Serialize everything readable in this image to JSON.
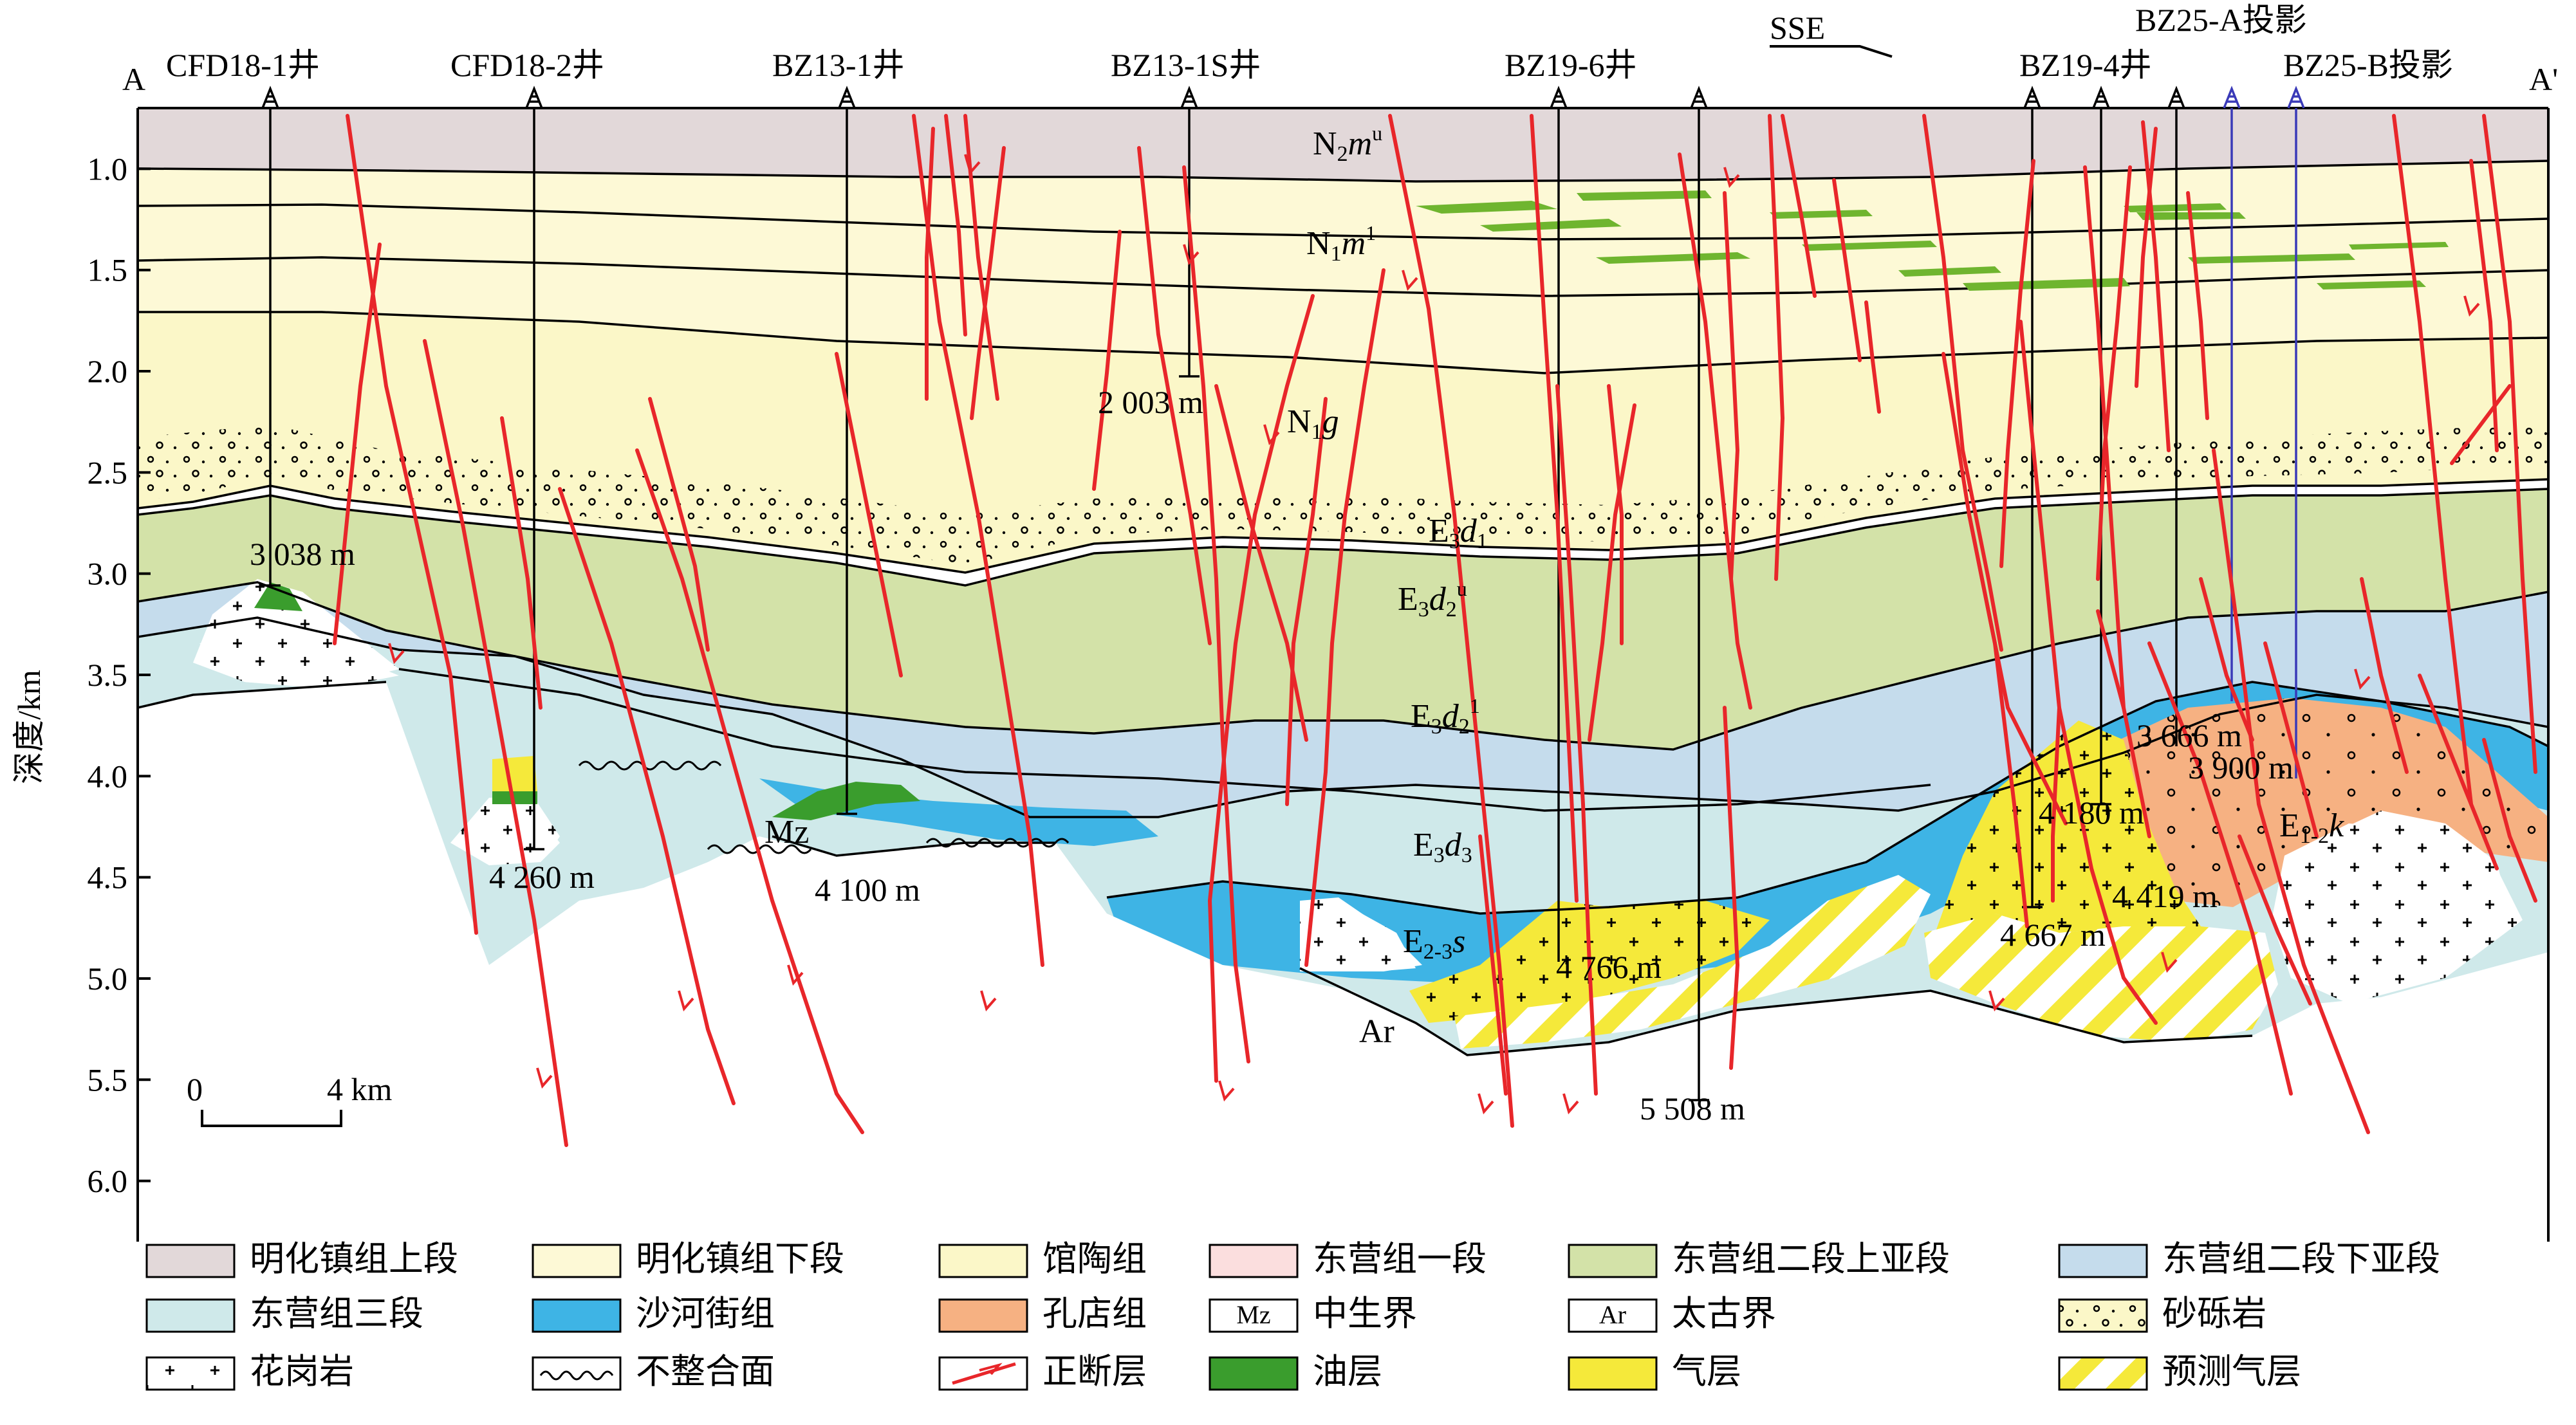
{
  "section": {
    "left_end": "A",
    "right_end": "A'",
    "direction": "SSE"
  },
  "wells": [
    {
      "name": "CFD18-1井"
    },
    {
      "name": "CFD18-2井"
    },
    {
      "name": "BZ13-1井"
    },
    {
      "name": "BZ13-1S井"
    },
    {
      "name": "BZ19-6井"
    },
    {
      "name": "BZ19-4井"
    },
    {
      "name": "BZ25-A投影"
    },
    {
      "name": "BZ25-B投影"
    }
  ],
  "depths": [
    "3 038 m",
    "4 260 m",
    "4 100 m",
    "2 003 m",
    "4 766 m",
    "5 508 m",
    "4 180 m",
    "4 667 m",
    "3 666 m",
    "4 419 m",
    "3 900 m"
  ],
  "units": {
    "mesozoic": "Mz",
    "archean": "Ar"
  },
  "axis": {
    "ylabel": "深度/km",
    "yticks": [
      "1.0",
      "1.5",
      "2.0",
      "2.5",
      "3.0",
      "3.5",
      "4.0",
      "4.5",
      "5.0",
      "5.5",
      "6.0"
    ],
    "ylim": [
      0.7,
      6.3
    ]
  },
  "scale": {
    "start": "0",
    "end": "4 km"
  },
  "legend": [
    {
      "label": "明化镇组上段",
      "swatch": "#e2d8d9"
    },
    {
      "label": "明化镇组下段",
      "swatch": "#fdf9d6"
    },
    {
      "label": "馆陶组",
      "swatch": "#fbf7c8"
    },
    {
      "label": "东营组一段",
      "swatch": "#fbdede"
    },
    {
      "label": "东营组二段上亚段",
      "swatch": "#d3e2a8"
    },
    {
      "label": "东营组二段下亚段",
      "swatch": "#c5dcec"
    },
    {
      "label": "东营组三段",
      "swatch": "#cfe9ea"
    },
    {
      "label": "沙河街组",
      "swatch": "#3eb4e5"
    },
    {
      "label": "孔店组",
      "swatch": "#f6b182"
    },
    {
      "label": "中生界",
      "swatch": "mz",
      "swatch_text": "Mz"
    },
    {
      "label": "太古界",
      "swatch": "ar",
      "swatch_text": "Ar"
    },
    {
      "label": "砂砾岩",
      "swatch": "gravel"
    },
    {
      "label": "花岗岩",
      "swatch": "granite"
    },
    {
      "label": "不整合面",
      "swatch": "unconformity"
    },
    {
      "label": "正断层",
      "swatch": "fault"
    },
    {
      "label": "油层",
      "swatch": "#3a9d2d"
    },
    {
      "label": "气层",
      "swatch": "#f5e93a"
    },
    {
      "label": "预测气层",
      "swatch": "predicted"
    }
  ]
}
